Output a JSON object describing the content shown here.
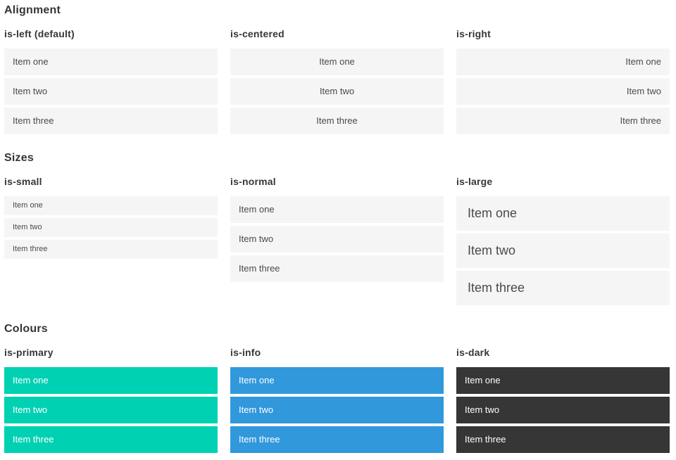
{
  "sections": [
    {
      "title": "Alignment",
      "groups": [
        {
          "label": "is-left (default)",
          "variant": "left",
          "items": [
            "Item one",
            "Item two",
            "Item three"
          ]
        },
        {
          "label": "is-centered",
          "variant": "centered",
          "items": [
            "Item one",
            "Item two",
            "Item three"
          ]
        },
        {
          "label": "is-right",
          "variant": "right",
          "items": [
            "Item one",
            "Item two",
            "Item three"
          ]
        }
      ]
    },
    {
      "title": "Sizes",
      "groups": [
        {
          "label": "is-small",
          "variant": "small",
          "items": [
            "Item one",
            "Item two",
            "Item three"
          ]
        },
        {
          "label": "is-normal",
          "variant": "normal",
          "items": [
            "Item one",
            "Item two",
            "Item three"
          ]
        },
        {
          "label": "is-large",
          "variant": "large",
          "items": [
            "Item one",
            "Item two",
            "Item three"
          ]
        }
      ]
    },
    {
      "title": "Colours",
      "groups": [
        {
          "label": "is-primary",
          "variant": "primary",
          "items": [
            "Item one",
            "Item two",
            "Item three"
          ]
        },
        {
          "label": "is-info",
          "variant": "info",
          "items": [
            "Item one",
            "Item two",
            "Item three"
          ]
        },
        {
          "label": "is-dark",
          "variant": "dark",
          "items": [
            "Item one",
            "Item two",
            "Item three"
          ]
        }
      ]
    }
  ],
  "colors": {
    "primary": "#00d1b2",
    "info": "#3298dc",
    "dark": "#363636",
    "item_background": "#f5f5f5",
    "item_text": "#4a4a4a",
    "heading_text": "#363636"
  }
}
